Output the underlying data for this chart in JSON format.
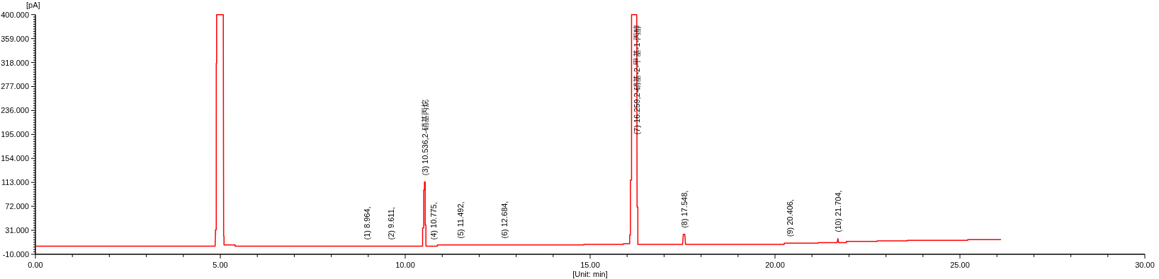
{
  "chart_data": {
    "type": "line",
    "xlabel": "[Unit: min]",
    "ylabel": "[pA]",
    "xlim": [
      0,
      30
    ],
    "ylim": [
      -10,
      400
    ],
    "xticks": [
      {
        "value": 0,
        "label": "0.00"
      },
      {
        "value": 1,
        "label": null
      },
      {
        "value": 2,
        "label": null
      },
      {
        "value": 3,
        "label": null
      },
      {
        "value": 4,
        "label": null
      },
      {
        "value": 5,
        "label": "5.00"
      },
      {
        "value": 6,
        "label": null
      },
      {
        "value": 7,
        "label": null
      },
      {
        "value": 8,
        "label": null
      },
      {
        "value": 9,
        "label": null
      },
      {
        "value": 10,
        "label": "10.00"
      },
      {
        "value": 11,
        "label": null
      },
      {
        "value": 12,
        "label": null
      },
      {
        "value": 13,
        "label": null
      },
      {
        "value": 14,
        "label": null
      },
      {
        "value": 15,
        "label": "15.00"
      },
      {
        "value": 16,
        "label": null
      },
      {
        "value": 17,
        "label": null
      },
      {
        "value": 18,
        "label": null
      },
      {
        "value": 19,
        "label": null
      },
      {
        "value": 20,
        "label": "20.00"
      },
      {
        "value": 21,
        "label": null
      },
      {
        "value": 22,
        "label": null
      },
      {
        "value": 23,
        "label": null
      },
      {
        "value": 24,
        "label": null
      },
      {
        "value": 25,
        "label": "25.00"
      },
      {
        "value": 26,
        "label": null
      },
      {
        "value": 27,
        "label": null
      },
      {
        "value": 28,
        "label": null
      },
      {
        "value": 29,
        "label": null
      },
      {
        "value": 30,
        "label": "30.00"
      }
    ],
    "yticks": [
      {
        "value": -10,
        "label": "-10.000"
      },
      {
        "value": 31,
        "label": "31.000"
      },
      {
        "value": 72,
        "label": "72.000"
      },
      {
        "value": 113,
        "label": "113.000"
      },
      {
        "value": 154,
        "label": "154.000"
      },
      {
        "value": 195,
        "label": "195.000"
      },
      {
        "value": 236,
        "label": "236.000"
      },
      {
        "value": 277,
        "label": "277.000"
      },
      {
        "value": 318,
        "label": "318.000"
      },
      {
        "value": 359,
        "label": "359.000"
      },
      {
        "value": 400,
        "label": "400.000"
      }
    ],
    "series": [
      {
        "color": "#ff0000",
        "x": [
          0,
          4.86,
          4.87,
          4.89,
          4.89,
          4.9,
          4.9,
          5.08,
          5.09,
          5.1,
          5.1,
          5.4,
          5.4,
          10.47,
          10.47,
          10.5,
          10.5,
          10.52,
          10.52,
          10.54,
          10.54,
          10.56,
          10.56,
          10.87,
          10.87,
          14.83,
          14.83,
          15.9,
          15.9,
          16.07,
          16.07,
          16.09,
          16.09,
          16.12,
          16.12,
          16.26,
          16.27,
          16.29,
          16.29,
          17.5,
          17.52,
          17.56,
          17.58,
          20.25,
          20.25,
          21.17,
          21.17,
          21.68,
          21.7,
          21.72,
          21.93,
          21.93,
          22.76,
          22.76,
          23.58,
          23.58,
          25.21,
          25.21,
          26.11
        ],
        "values": [
          4,
          4,
          32,
          32,
          317,
          317,
          400,
          400,
          21,
          21,
          6,
          6,
          4,
          4,
          35,
          35,
          100,
          100,
          114,
          114,
          40,
          40,
          4,
          4,
          6,
          6,
          7,
          7,
          8,
          8,
          23,
          23,
          117,
          117,
          400,
          400,
          71,
          71,
          7,
          7,
          24,
          24,
          7,
          7,
          9,
          9,
          10,
          10,
          17,
          10,
          10,
          12,
          12,
          13,
          13,
          14,
          14,
          15,
          15
        ]
      }
    ],
    "annotations": [
      {
        "text": "(1) 8.964,",
        "x": 8.964,
        "y": 4
      },
      {
        "text": "(2) 9.611,",
        "x": 9.611,
        "y": 4
      },
      {
        "text": "(3) 10.536,2-硝基丙烷",
        "x": 10.536,
        "y": 114
      },
      {
        "text": "(4) 10.775,",
        "x": 10.775,
        "y": 4
      },
      {
        "text": "(5) 11.492,",
        "x": 11.492,
        "y": 6
      },
      {
        "text": "(6) 12.684,",
        "x": 12.684,
        "y": 6
      },
      {
        "text": "(7) 16.259,2-硝基-2-甲基-1-丙醇",
        "x": 16.259,
        "y": 400
      },
      {
        "text": "(8) 17.548,",
        "x": 17.548,
        "y": 24
      },
      {
        "text": "(9) 20.406,",
        "x": 20.406,
        "y": 9
      },
      {
        "text": "(10) 21.704,",
        "x": 21.704,
        "y": 17
      }
    ]
  }
}
